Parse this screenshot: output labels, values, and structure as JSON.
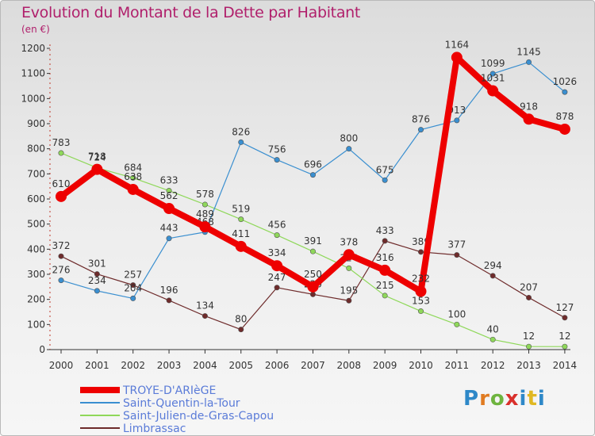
{
  "title": "Evolution du Montant de la Dette par Habitant",
  "unit_label": "(en €)",
  "logo": {
    "letters": [
      "P",
      "r",
      "o",
      "x",
      "i",
      "t",
      "i"
    ]
  },
  "chart_data": {
    "type": "line",
    "title": "Evolution du Montant de la Dette par Habitant",
    "ylabel": "(en €)",
    "xlabel": "",
    "ylim": [
      0,
      1200
    ],
    "yticks": [
      0,
      100,
      200,
      300,
      400,
      500,
      600,
      700,
      800,
      900,
      1000,
      1100,
      1200
    ],
    "grid": false,
    "legend_position": "bottom-left",
    "x": [
      "2000",
      "2001",
      "2002",
      "2003",
      "2004",
      "2005",
      "2006",
      "2007",
      "2008",
      "2009",
      "2010",
      "2011",
      "2012",
      "2013",
      "2014"
    ],
    "series": [
      {
        "name": "TROYE-D'ARIèGE",
        "color": "#ee0000",
        "values": [
          610,
          718,
          638,
          562,
          489,
          411,
          334,
          250,
          378,
          316,
          232,
          1164,
          1031,
          918,
          878
        ]
      },
      {
        "name": "Saint-Quentin-la-Tour",
        "color": "#3a8fd0",
        "values": [
          276,
          234,
          204,
          443,
          468,
          826,
          756,
          696,
          800,
          675,
          876,
          913,
          1099,
          1145,
          1026
        ]
      },
      {
        "name": "Saint-Julien-de-Gras-Capou",
        "color": "#8fd85a",
        "values": [
          783,
          724,
          684,
          633,
          578,
          519,
          456,
          391,
          324,
          215,
          153,
          100,
          40,
          12,
          12
        ]
      },
      {
        "name": "Limbrassac",
        "color": "#6e2b2b",
        "values": [
          372,
          301,
          257,
          196,
          134,
          80,
          247,
          220,
          195,
          433,
          389,
          377,
          294,
          207,
          127
        ]
      }
    ]
  }
}
